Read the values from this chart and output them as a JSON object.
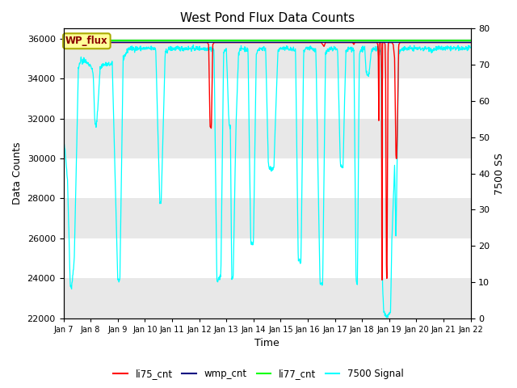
{
  "title": "West Pond Flux Data Counts",
  "xlabel": "Time",
  "ylabel_left": "Data Counts",
  "ylabel_right": "7500 SS",
  "ylim_left": [
    22000,
    36500
  ],
  "ylim_right": [
    0,
    80
  ],
  "xtick_labels": [
    "Jan 7",
    "Jan 8",
    "Jan 9",
    "Jan 10",
    "Jan 11",
    "Jan 12",
    "Jan 13",
    "Jan 14",
    "Jan 15",
    "Jan 16",
    "Jan 17",
    "Jan 18",
    "Jan 19",
    "Jan 20",
    "Jan 21",
    "Jan 22"
  ],
  "legend_entries": [
    "li75_cnt",
    "wmp_cnt",
    "li77_cnt",
    "7500 Signal"
  ],
  "legend_colors": [
    "red",
    "navy",
    "lime",
    "cyan"
  ],
  "annotation_text": "WP_flux",
  "annotation_box_color": "#ffff99",
  "annotation_border_color": "#aaaa00",
  "bg_bands": [
    [
      22000,
      24000,
      "#e8e8e8"
    ],
    [
      24000,
      26000,
      "#ffffff"
    ],
    [
      26000,
      28000,
      "#e8e8e8"
    ],
    [
      28000,
      30000,
      "#ffffff"
    ],
    [
      30000,
      32000,
      "#e8e8e8"
    ],
    [
      32000,
      34000,
      "#ffffff"
    ],
    [
      34000,
      36000,
      "#e8e8e8"
    ],
    [
      36000,
      36500,
      "#ffffff"
    ]
  ],
  "yticks_left": [
    22000,
    24000,
    26000,
    28000,
    30000,
    32000,
    34000,
    36000
  ],
  "yticks_right": [
    0,
    10,
    20,
    30,
    40,
    50,
    60,
    70,
    80
  ],
  "figsize": [
    6.4,
    4.8
  ],
  "dpi": 100
}
